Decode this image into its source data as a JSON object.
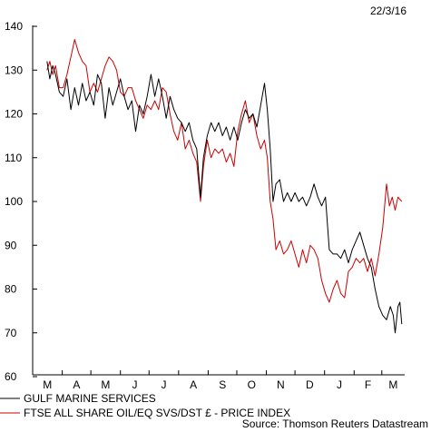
{
  "chart_data": {
    "type": "line",
    "date_label": "22/3/16",
    "source": "Source: Thomson Reuters Datastream",
    "ylim": [
      60,
      140
    ],
    "yticks": [
      60,
      70,
      80,
      90,
      100,
      110,
      120,
      130,
      140
    ],
    "x_months": [
      "M",
      "A",
      "M",
      "J",
      "J",
      "A",
      "S",
      "O",
      "N",
      "D",
      "J",
      "F",
      "M"
    ],
    "x_range": [
      "2015-03-01",
      "2016-03-25"
    ],
    "grid": false,
    "legend_placement": "bottom-left",
    "series": [
      {
        "name": "GULF MARINE SERVICES",
        "color": "#000000",
        "points": [
          [
            "2015-03-16",
            132
          ],
          [
            "2015-03-19",
            128
          ],
          [
            "2015-03-22",
            131
          ],
          [
            "2015-03-25",
            129
          ],
          [
            "2015-03-29",
            125
          ],
          [
            "2015-04-02",
            124
          ],
          [
            "2015-04-06",
            128
          ],
          [
            "2015-04-10",
            121
          ],
          [
            "2015-04-14",
            126
          ],
          [
            "2015-04-18",
            122
          ],
          [
            "2015-04-22",
            127
          ],
          [
            "2015-04-26",
            123
          ],
          [
            "2015-04-30",
            125
          ],
          [
            "2015-05-04",
            122
          ],
          [
            "2015-05-08",
            129
          ],
          [
            "2015-05-12",
            127
          ],
          [
            "2015-05-16",
            119
          ],
          [
            "2015-05-20",
            126
          ],
          [
            "2015-05-24",
            122
          ],
          [
            "2015-05-28",
            125
          ],
          [
            "2015-06-01",
            128
          ],
          [
            "2015-06-05",
            124
          ],
          [
            "2015-06-09",
            121
          ],
          [
            "2015-06-13",
            123
          ],
          [
            "2015-06-17",
            116
          ],
          [
            "2015-06-21",
            122
          ],
          [
            "2015-06-25",
            120
          ],
          [
            "2015-06-29",
            124
          ],
          [
            "2015-07-03",
            129
          ],
          [
            "2015-07-07",
            124
          ],
          [
            "2015-07-11",
            128
          ],
          [
            "2015-07-15",
            124
          ],
          [
            "2015-07-19",
            119
          ],
          [
            "2015-07-23",
            124
          ],
          [
            "2015-07-27",
            121
          ],
          [
            "2015-07-31",
            119
          ],
          [
            "2015-08-04",
            118
          ],
          [
            "2015-08-08",
            116
          ],
          [
            "2015-08-12",
            118
          ],
          [
            "2015-08-16",
            114
          ],
          [
            "2015-08-20",
            112
          ],
          [
            "2015-08-24",
            101
          ],
          [
            "2015-08-27",
            110
          ],
          [
            "2015-08-31",
            115
          ],
          [
            "2015-09-04",
            118
          ],
          [
            "2015-09-08",
            116
          ],
          [
            "2015-09-12",
            118
          ],
          [
            "2015-09-16",
            115
          ],
          [
            "2015-09-20",
            117
          ],
          [
            "2015-09-24",
            114
          ],
          [
            "2015-09-28",
            117
          ],
          [
            "2015-10-02",
            114
          ],
          [
            "2015-10-06",
            118
          ],
          [
            "2015-10-10",
            121
          ],
          [
            "2015-10-14",
            119
          ],
          [
            "2015-10-18",
            120
          ],
          [
            "2015-10-22",
            117
          ],
          [
            "2015-10-26",
            122
          ],
          [
            "2015-10-30",
            127
          ],
          [
            "2015-11-02",
            121
          ],
          [
            "2015-11-05",
            112
          ],
          [
            "2015-11-08",
            100
          ],
          [
            "2015-11-11",
            104
          ],
          [
            "2015-11-15",
            105
          ],
          [
            "2015-11-19",
            100
          ],
          [
            "2015-11-23",
            102
          ],
          [
            "2015-11-27",
            100
          ],
          [
            "2015-12-01",
            102
          ],
          [
            "2015-12-05",
            100
          ],
          [
            "2015-12-09",
            101
          ],
          [
            "2015-12-13",
            99
          ],
          [
            "2015-12-17",
            101
          ],
          [
            "2015-12-21",
            104
          ],
          [
            "2015-12-25",
            101
          ],
          [
            "2015-12-29",
            99
          ],
          [
            "2016-01-02",
            101
          ],
          [
            "2016-01-06",
            89
          ],
          [
            "2016-01-10",
            88
          ],
          [
            "2016-01-14",
            88
          ],
          [
            "2016-01-18",
            87
          ],
          [
            "2016-01-22",
            89
          ],
          [
            "2016-01-26",
            86
          ],
          [
            "2016-01-30",
            89
          ],
          [
            "2016-02-03",
            91
          ],
          [
            "2016-02-07",
            93
          ],
          [
            "2016-02-11",
            90
          ],
          [
            "2016-02-15",
            87
          ],
          [
            "2016-02-19",
            85
          ],
          [
            "2016-02-23",
            80
          ],
          [
            "2016-02-27",
            76
          ],
          [
            "2016-03-02",
            74
          ],
          [
            "2016-03-06",
            73
          ],
          [
            "2016-03-10",
            76
          ],
          [
            "2016-03-13",
            74
          ],
          [
            "2016-03-15",
            70
          ],
          [
            "2016-03-18",
            76
          ],
          [
            "2016-03-20",
            77
          ],
          [
            "2016-03-22",
            72
          ]
        ]
      },
      {
        "name": "FTSE ALL SHARE OIL/EQ SVS/DST £ - PRICE INDEX",
        "color": "#cc0000",
        "points": [
          [
            "2015-03-16",
            130
          ],
          [
            "2015-03-19",
            132
          ],
          [
            "2015-03-22",
            129
          ],
          [
            "2015-03-25",
            131
          ],
          [
            "2015-03-29",
            126
          ],
          [
            "2015-04-02",
            126
          ],
          [
            "2015-04-06",
            129
          ],
          [
            "2015-04-10",
            133
          ],
          [
            "2015-04-14",
            137
          ],
          [
            "2015-04-18",
            134
          ],
          [
            "2015-04-22",
            132
          ],
          [
            "2015-04-26",
            131
          ],
          [
            "2015-04-30",
            125
          ],
          [
            "2015-05-04",
            127
          ],
          [
            "2015-05-08",
            125
          ],
          [
            "2015-05-12",
            128
          ],
          [
            "2015-05-16",
            131
          ],
          [
            "2015-05-20",
            133
          ],
          [
            "2015-05-24",
            132
          ],
          [
            "2015-05-28",
            130
          ],
          [
            "2015-06-01",
            125
          ],
          [
            "2015-06-05",
            124
          ],
          [
            "2015-06-09",
            126
          ],
          [
            "2015-06-13",
            126
          ],
          [
            "2015-06-17",
            123
          ],
          [
            "2015-06-21",
            121
          ],
          [
            "2015-06-25",
            119
          ],
          [
            "2015-06-29",
            122
          ],
          [
            "2015-07-03",
            121
          ],
          [
            "2015-07-07",
            123
          ],
          [
            "2015-07-11",
            121
          ],
          [
            "2015-07-15",
            126
          ],
          [
            "2015-07-19",
            125
          ],
          [
            "2015-07-23",
            120
          ],
          [
            "2015-07-27",
            116
          ],
          [
            "2015-07-31",
            114
          ],
          [
            "2015-08-04",
            118
          ],
          [
            "2015-08-08",
            112
          ],
          [
            "2015-08-12",
            114
          ],
          [
            "2015-08-16",
            111
          ],
          [
            "2015-08-20",
            109
          ],
          [
            "2015-08-24",
            100
          ],
          [
            "2015-08-27",
            108
          ],
          [
            "2015-08-31",
            114
          ],
          [
            "2015-09-04",
            110
          ],
          [
            "2015-09-08",
            112
          ],
          [
            "2015-09-12",
            111
          ],
          [
            "2015-09-16",
            112
          ],
          [
            "2015-09-20",
            109
          ],
          [
            "2015-09-24",
            111
          ],
          [
            "2015-09-28",
            108
          ],
          [
            "2015-10-02",
            116
          ],
          [
            "2015-10-06",
            120
          ],
          [
            "2015-10-10",
            123
          ],
          [
            "2015-10-14",
            118
          ],
          [
            "2015-10-18",
            120
          ],
          [
            "2015-10-22",
            115
          ],
          [
            "2015-10-26",
            112
          ],
          [
            "2015-10-30",
            114
          ],
          [
            "2015-11-02",
            110
          ],
          [
            "2015-11-05",
            100
          ],
          [
            "2015-11-08",
            96
          ],
          [
            "2015-11-11",
            89
          ],
          [
            "2015-11-15",
            91
          ],
          [
            "2015-11-19",
            88
          ],
          [
            "2015-11-23",
            89
          ],
          [
            "2015-11-27",
            91
          ],
          [
            "2015-12-01",
            88
          ],
          [
            "2015-12-05",
            85
          ],
          [
            "2015-12-09",
            89
          ],
          [
            "2015-12-13",
            86
          ],
          [
            "2015-12-17",
            90
          ],
          [
            "2015-12-21",
            89
          ],
          [
            "2015-12-25",
            87
          ],
          [
            "2015-12-29",
            82
          ],
          [
            "2016-01-02",
            79
          ],
          [
            "2016-01-06",
            77
          ],
          [
            "2016-01-10",
            80
          ],
          [
            "2016-01-14",
            82
          ],
          [
            "2016-01-18",
            79
          ],
          [
            "2016-01-22",
            78
          ],
          [
            "2016-01-26",
            84
          ],
          [
            "2016-01-30",
            85
          ],
          [
            "2016-02-03",
            87
          ],
          [
            "2016-02-07",
            86
          ],
          [
            "2016-02-11",
            87
          ],
          [
            "2016-02-15",
            84
          ],
          [
            "2016-02-19",
            87
          ],
          [
            "2016-02-23",
            83
          ],
          [
            "2016-02-27",
            88
          ],
          [
            "2016-03-02",
            94
          ],
          [
            "2016-03-06",
            104
          ],
          [
            "2016-03-09",
            99
          ],
          [
            "2016-03-12",
            101
          ],
          [
            "2016-03-15",
            98
          ],
          [
            "2016-03-18",
            101
          ],
          [
            "2016-03-22",
            100
          ]
        ]
      }
    ]
  }
}
